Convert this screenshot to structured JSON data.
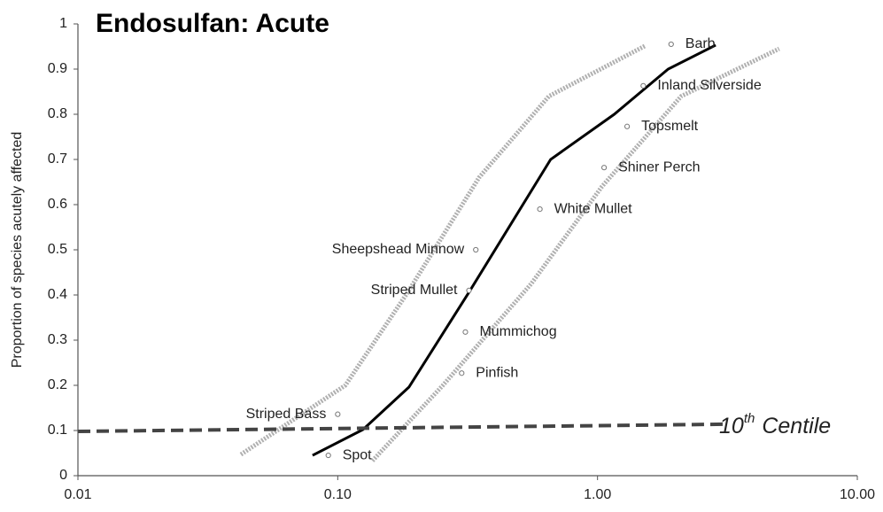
{
  "chart_data": {
    "type": "scatter",
    "title": "Endosulfan: Acute",
    "y_label": "Proportion of species acutely affected",
    "xscale": "log",
    "xlim": [
      0.01,
      10
    ],
    "xticks": [
      {
        "value": 0.01,
        "label": "0.01"
      },
      {
        "value": 0.1,
        "label": "0.10"
      },
      {
        "value": 1,
        "label": "1.00"
      },
      {
        "value": 10,
        "label": "10.00"
      }
    ],
    "ylim": [
      0,
      1
    ],
    "yticks": [
      0,
      0.1,
      0.2,
      0.3,
      0.4,
      0.5,
      0.6,
      0.7,
      0.8,
      0.9,
      1
    ],
    "grid": false,
    "series": [
      {
        "type": "scatter",
        "color": "#777777",
        "labels": [
          "Spot",
          "Striped Bass",
          "Pinfish",
          "Mummichog",
          "Striped Mullet",
          "Sheepshead Minnow",
          "White Mullet",
          "Shiner Perch",
          "Topsmelt",
          "Inland Silverside",
          "Barb"
        ],
        "x": [
          0.092,
          0.1,
          0.3,
          0.31,
          0.32,
          0.34,
          0.6,
          1.06,
          1.3,
          1.5,
          1.92
        ],
        "values": [
          0.045,
          0.136,
          0.227,
          0.318,
          0.41,
          0.5,
          0.59,
          0.682,
          0.773,
          0.863,
          0.955
        ]
      },
      {
        "type": "line",
        "color": "#000000",
        "dash": "solid",
        "x": [
          0.08,
          0.125,
          0.188,
          0.32,
          0.66,
          1.16,
          1.87,
          2.85
        ],
        "values": [
          0.045,
          0.102,
          0.196,
          0.406,
          0.7,
          0.8,
          0.9,
          0.953
        ]
      },
      {
        "type": "line",
        "color": "#b0b0b0",
        "dash": "dotted",
        "x": [
          0.0424,
          0.107,
          0.186,
          0.35,
          0.65,
          1.52
        ],
        "values": [
          0.047,
          0.2,
          0.406,
          0.66,
          0.84,
          0.951
        ]
      },
      {
        "type": "line",
        "color": "#b0b0b0",
        "dash": "dotted",
        "x": [
          0.136,
          0.254,
          0.556,
          1.04,
          2.1,
          5.0
        ],
        "values": [
          0.033,
          0.2,
          0.425,
          0.64,
          0.84,
          0.945
        ]
      },
      {
        "type": "line",
        "color": "#444444",
        "dash": "dashed",
        "x": [
          0.01,
          3.2
        ],
        "values": [
          0.098,
          0.114
        ]
      }
    ],
    "centile_label": {
      "base": "10",
      "sup": "th",
      "rest": "Centile"
    }
  }
}
